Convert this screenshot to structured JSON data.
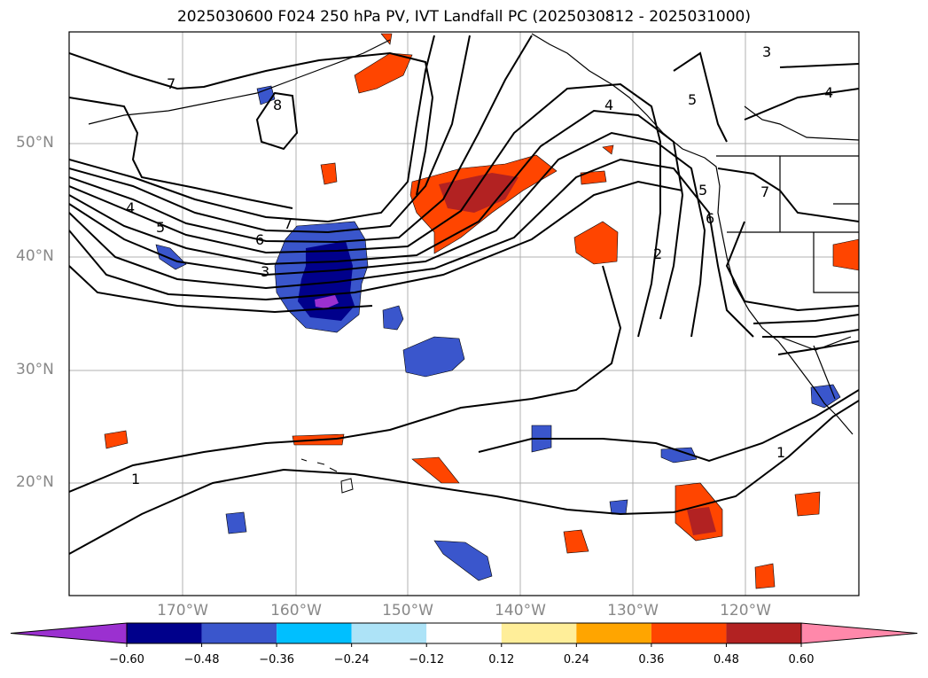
{
  "title": "2025030600 F024 250 hPa PV, IVT Landfall PC (2025030812 - 2025031000)",
  "lat_labels": [
    "50°N",
    "40°N",
    "30°N",
    "20°N"
  ],
  "lon_labels": [
    "170°W",
    "160°W",
    "150°W",
    "140°W",
    "130°W",
    "120°W"
  ],
  "contour_labels": [
    "7",
    "8",
    "4",
    "5",
    "7",
    "6",
    "3",
    "4",
    "5",
    "2",
    "1",
    "1",
    "3",
    "5",
    "6",
    "7",
    "4"
  ],
  "colorbar": {
    "ticks": [
      "−0.60",
      "−0.48",
      "−0.36",
      "−0.24",
      "−0.12",
      "0.12",
      "0.24",
      "0.36",
      "0.48",
      "0.60"
    ],
    "colors": [
      "#9b30d0",
      "#00008b",
      "#3a56cc",
      "#00bfff",
      "#ade3f7",
      "#ffffff",
      "#ffee99",
      "#ffa500",
      "#ff4500",
      "#b22222",
      "#ff88aa"
    ]
  },
  "palette": {
    "pv_strong_neg": "#9b30d0",
    "pv_neg_deep": "#00008b",
    "pv_neg": "#3a56cc",
    "pv_neg_light": "#00bfff",
    "pv_pos_light": "#ffee99",
    "pv_pos": "#ffa500",
    "pv_pos_strong": "#ff4500",
    "pv_pos_deep": "#b22222",
    "pv_pos_max": "#ff88aa"
  }
}
